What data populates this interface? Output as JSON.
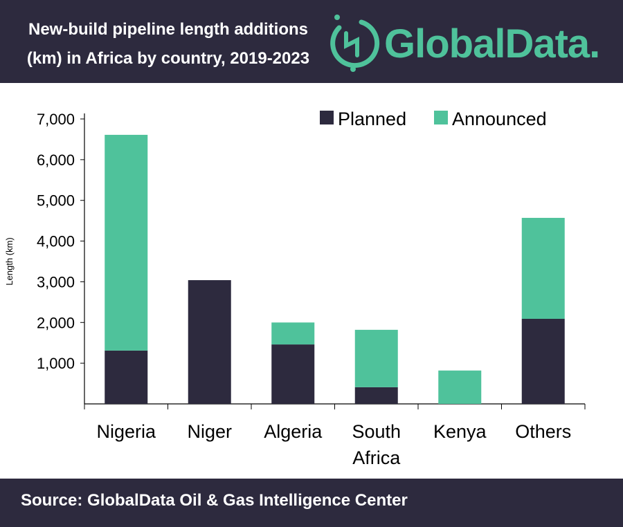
{
  "header": {
    "title_line1": "New-build pipeline length additions",
    "title_line2": "(km) in Africa by country, 2019-2023",
    "logo_text": "GlobalData."
  },
  "footer": {
    "source": "Source:  GlobalData Oil & Gas Intelligence Center"
  },
  "colors": {
    "planned": "#2d2a3e",
    "announced": "#4fc29b",
    "header": "#2d2a3e"
  },
  "chart_data": {
    "type": "bar",
    "stacked": true,
    "title": "New-build pipeline length additions (km) in Africa by country, 2019-2023",
    "categories": [
      "Nigeria",
      "Niger",
      "Algeria",
      "South Africa",
      "Kenya",
      "Others"
    ],
    "category_lines": [
      [
        "Nigeria"
      ],
      [
        "Niger"
      ],
      [
        "Algeria"
      ],
      [
        "South",
        "Africa"
      ],
      [
        "Kenya"
      ],
      [
        "Others"
      ]
    ],
    "series": [
      {
        "name": "Planned",
        "values": [
          1310,
          3040,
          1460,
          410,
          0,
          2090
        ]
      },
      {
        "name": "Announced",
        "values": [
          5300,
          0,
          540,
          1410,
          820,
          2480
        ]
      }
    ],
    "ylabel": "Length (km)",
    "xlabel": "",
    "ylim": [
      0,
      7000
    ],
    "yticks": [
      1000,
      2000,
      3000,
      4000,
      5000,
      6000,
      7000
    ],
    "ytick_labels": [
      "1,000",
      "2,000",
      "3,000",
      "4,000",
      "5,000",
      "6,000",
      "7,000"
    ],
    "legend_position": "top-right",
    "grid": false
  }
}
